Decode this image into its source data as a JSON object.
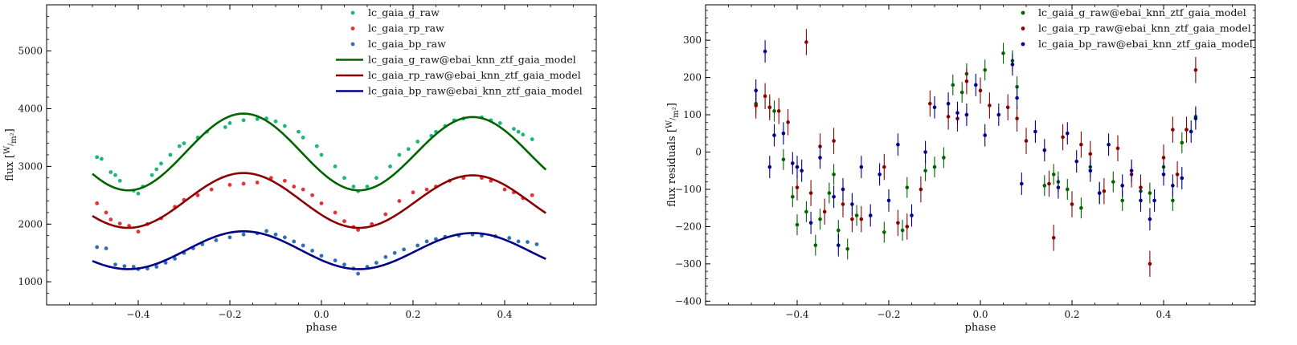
{
  "chart_data": [
    {
      "type": "scatter",
      "xlabel": "phase",
      "ylabel": "flux [W/m²]",
      "ylabel_parts": {
        "main": "flux [",
        "num": "W",
        "den": "m²",
        "close": "]"
      },
      "xlim": [
        -0.6,
        0.6
      ],
      "ylim": [
        600,
        5800
      ],
      "xticks": [
        -0.4,
        -0.2,
        0.0,
        0.2,
        0.4
      ],
      "xtick_labels": [
        "−0.4",
        "−0.2",
        "0.0",
        "0.2",
        "0.4"
      ],
      "yticks": [
        1000,
        2000,
        3000,
        4000,
        5000
      ],
      "ytick_labels": [
        "1000",
        "2000",
        "3000",
        "4000",
        "5000"
      ],
      "legend": {
        "position": "top-right",
        "entries": [
          {
            "label": "lc_gaia_g_raw",
            "kind": "point",
            "color": "#1db67a"
          },
          {
            "label": "lc_gaia_rp_raw",
            "kind": "point",
            "color": "#e8303a"
          },
          {
            "label": "lc_gaia_bp_raw",
            "kind": "point",
            "color": "#2e70b0"
          },
          {
            "label": "lc_gaia_g_raw@ebai_knn_ztf_gaia_model",
            "kind": "line",
            "color": "#006400"
          },
          {
            "label": "lc_gaia_rp_raw@ebai_knn_ztf_gaia_model",
            "kind": "line",
            "color": "#8b0000"
          },
          {
            "label": "lc_gaia_bp_raw@ebai_knn_ztf_gaia_model",
            "kind": "line",
            "color": "#00008b"
          }
        ]
      },
      "series": [
        {
          "name": "lc_gaia_g_raw",
          "kind": "point",
          "color": "#1db67a",
          "x": [
            -0.49,
            -0.48,
            -0.46,
            -0.45,
            -0.44,
            -0.41,
            -0.4,
            -0.39,
            -0.37,
            -0.36,
            -0.35,
            -0.33,
            -0.31,
            -0.3,
            -0.27,
            -0.25,
            -0.21,
            -0.2,
            -0.17,
            -0.14,
            -0.12,
            -0.1,
            -0.08,
            -0.05,
            -0.04,
            -0.01,
            0.0,
            0.03,
            0.05,
            0.07,
            0.08,
            0.1,
            0.12,
            0.15,
            0.17,
            0.19,
            0.21,
            0.24,
            0.25,
            0.27,
            0.29,
            0.31,
            0.35,
            0.37,
            0.39,
            0.42,
            0.43,
            0.44,
            0.46
          ],
          "y": [
            3160,
            3130,
            2900,
            2850,
            2750,
            2580,
            2530,
            2650,
            2850,
            2950,
            3050,
            3200,
            3350,
            3400,
            3500,
            3600,
            3680,
            3750,
            3800,
            3820,
            3830,
            3780,
            3700,
            3600,
            3500,
            3350,
            3200,
            3000,
            2800,
            2650,
            2570,
            2650,
            2800,
            3000,
            3200,
            3300,
            3430,
            3530,
            3600,
            3700,
            3800,
            3830,
            3850,
            3800,
            3750,
            3650,
            3600,
            3550,
            3470
          ]
        },
        {
          "name": "lc_gaia_rp_raw",
          "kind": "point",
          "color": "#e8303a",
          "x": [
            -0.49,
            -0.47,
            -0.46,
            -0.44,
            -0.42,
            -0.4,
            -0.38,
            -0.35,
            -0.32,
            -0.3,
            -0.27,
            -0.24,
            -0.2,
            -0.17,
            -0.14,
            -0.11,
            -0.08,
            -0.06,
            -0.04,
            -0.02,
            0.0,
            0.03,
            0.05,
            0.07,
            0.08,
            0.11,
            0.14,
            0.17,
            0.2,
            0.23,
            0.25,
            0.28,
            0.31,
            0.35,
            0.37,
            0.4,
            0.42,
            0.44,
            0.46
          ],
          "y": [
            2360,
            2200,
            2080,
            2010,
            1970,
            1870,
            2000,
            2100,
            2300,
            2420,
            2500,
            2600,
            2680,
            2700,
            2720,
            2800,
            2750,
            2650,
            2600,
            2500,
            2360,
            2200,
            2050,
            1950,
            1900,
            2000,
            2170,
            2400,
            2550,
            2600,
            2650,
            2750,
            2800,
            2800,
            2750,
            2600,
            2550,
            2450,
            2500
          ]
        },
        {
          "name": "lc_gaia_bp_raw",
          "kind": "point",
          "color": "#2e70b0",
          "x": [
            -0.49,
            -0.47,
            -0.45,
            -0.43,
            -0.41,
            -0.4,
            -0.38,
            -0.36,
            -0.34,
            -0.32,
            -0.3,
            -0.28,
            -0.26,
            -0.23,
            -0.2,
            -0.17,
            -0.14,
            -0.12,
            -0.1,
            -0.08,
            -0.06,
            -0.04,
            -0.02,
            0.0,
            0.03,
            0.05,
            0.07,
            0.08,
            0.1,
            0.12,
            0.14,
            0.16,
            0.18,
            0.21,
            0.23,
            0.25,
            0.27,
            0.3,
            0.33,
            0.35,
            0.38,
            0.41,
            0.43,
            0.45,
            0.47
          ],
          "y": [
            1600,
            1580,
            1300,
            1270,
            1260,
            1220,
            1230,
            1260,
            1330,
            1400,
            1500,
            1580,
            1650,
            1720,
            1770,
            1820,
            1840,
            1880,
            1820,
            1770,
            1700,
            1630,
            1540,
            1450,
            1370,
            1300,
            1230,
            1140,
            1260,
            1330,
            1430,
            1500,
            1560,
            1630,
            1700,
            1740,
            1780,
            1800,
            1820,
            1800,
            1790,
            1760,
            1700,
            1690,
            1650
          ]
        },
        {
          "name": "lc_gaia_g_raw@ebai_knn_ztf_gaia_model",
          "kind": "line",
          "color": "#006400",
          "mean": 3235,
          "amp1": 650,
          "amp2": 30,
          "phase_max1": -0.17,
          "phase_max2": 0.33,
          "x_range": [
            -0.5,
            0.49
          ]
        },
        {
          "name": "lc_gaia_rp_raw@ebai_knn_ztf_gaia_model",
          "kind": "line",
          "color": "#8b0000",
          "mean": 2400,
          "amp1": 465,
          "amp2": 20,
          "phase_max1": -0.17,
          "phase_max2": 0.33,
          "x_range": [
            -0.5,
            0.49
          ]
        },
        {
          "name": "lc_gaia_bp_raw@ebai_knn_ztf_gaia_model",
          "kind": "line",
          "color": "#00008b",
          "mean": 1540,
          "amp1": 320,
          "amp2": 15,
          "phase_max1": -0.17,
          "phase_max2": 0.33,
          "x_range": [
            -0.5,
            0.49
          ]
        }
      ]
    },
    {
      "type": "scatter",
      "xlabel": "phase",
      "ylabel": "flux residuals [W/m²]",
      "ylabel_parts": {
        "main": "flux residuals [",
        "num": "W",
        "den": "m²",
        "close": "]"
      },
      "xlim": [
        -0.6,
        0.6
      ],
      "ylim": [
        -410,
        395
      ],
      "xticks": [
        -0.4,
        -0.2,
        0.0,
        0.2,
        0.4
      ],
      "xtick_labels": [
        "−0.4",
        "−0.2",
        "0.0",
        "0.2",
        "0.4"
      ],
      "yticks": [
        -400,
        -300,
        -200,
        -100,
        0,
        100,
        200,
        300
      ],
      "ytick_labels": [
        "−400",
        "−300",
        "−200",
        "−100",
        "0",
        "100",
        "200",
        "300"
      ],
      "legend": {
        "position": "top-right",
        "entries": [
          {
            "label": "lc_gaia_g_raw@ebai_knn_ztf_gaia_model",
            "kind": "point",
            "color": "#006400"
          },
          {
            "label": "lc_gaia_rp_raw@ebai_knn_ztf_gaia_model",
            "kind": "point",
            "color": "#8b0000"
          },
          {
            "label": "lc_gaia_bp_raw@ebai_knn_ztf_gaia_model",
            "kind": "point",
            "color": "#00008b"
          }
        ]
      },
      "series": [
        {
          "name": "lc_gaia_g_raw@ebai_knn_ztf_gaia_model",
          "kind": "errorbar",
          "color": "#006400",
          "err": 28,
          "x": [
            -0.49,
            -0.46,
            -0.45,
            -0.43,
            -0.41,
            -0.4,
            -0.38,
            -0.36,
            -0.35,
            -0.33,
            -0.32,
            -0.31,
            -0.29,
            -0.27,
            -0.21,
            -0.17,
            -0.16,
            -0.12,
            -0.1,
            -0.08,
            -0.06,
            -0.04,
            -0.03,
            0.01,
            0.05,
            0.07,
            0.08,
            0.14,
            0.16,
            0.17,
            0.19,
            0.22,
            0.24,
            0.26,
            0.29,
            0.31,
            0.35,
            0.37,
            0.4,
            0.42,
            0.44,
            0.45,
            0.47
          ],
          "y": [
            130,
            120,
            110,
            -20,
            -120,
            -195,
            -160,
            -250,
            -180,
            -110,
            -60,
            -210,
            -260,
            -170,
            -215,
            -210,
            -95,
            -50,
            -40,
            -15,
            180,
            160,
            210,
            220,
            265,
            245,
            175,
            -90,
            -60,
            -80,
            -100,
            -150,
            -40,
            -110,
            -80,
            -130,
            -105,
            -110,
            -40,
            -130,
            25,
            60,
            95
          ]
        },
        {
          "name": "lc_gaia_rp_raw@ebai_knn_ztf_gaia_model",
          "kind": "errorbar",
          "color": "#8b0000",
          "err": 35,
          "x": [
            -0.49,
            -0.47,
            -0.46,
            -0.44,
            -0.42,
            -0.4,
            -0.38,
            -0.37,
            -0.35,
            -0.34,
            -0.32,
            -0.3,
            -0.28,
            -0.26,
            -0.21,
            -0.18,
            -0.16,
            -0.13,
            -0.11,
            -0.07,
            -0.05,
            -0.03,
            0.0,
            0.02,
            0.06,
            0.08,
            0.1,
            0.15,
            0.16,
            0.18,
            0.2,
            0.22,
            0.24,
            0.27,
            0.3,
            0.33,
            0.35,
            0.37,
            0.4,
            0.42,
            0.43,
            0.45,
            0.47
          ],
          "y": [
            125,
            150,
            120,
            110,
            80,
            -95,
            295,
            -110,
            15,
            -160,
            30,
            -140,
            -180,
            -180,
            -40,
            -190,
            -200,
            -100,
            130,
            95,
            90,
            190,
            165,
            125,
            120,
            90,
            30,
            -85,
            -230,
            40,
            -140,
            20,
            -5,
            -105,
            10,
            -60,
            -95,
            -300,
            -15,
            60,
            -60,
            60,
            220
          ]
        },
        {
          "name": "lc_gaia_bp_raw@ebai_knn_ztf_gaia_model",
          "kind": "errorbar",
          "color": "#00008b",
          "err": 30,
          "x": [
            -0.49,
            -0.47,
            -0.46,
            -0.45,
            -0.43,
            -0.41,
            -0.4,
            -0.39,
            -0.37,
            -0.35,
            -0.32,
            -0.31,
            -0.3,
            -0.28,
            -0.26,
            -0.24,
            -0.22,
            -0.2,
            -0.18,
            -0.15,
            -0.12,
            -0.1,
            -0.07,
            -0.05,
            -0.03,
            -0.01,
            0.01,
            0.04,
            0.07,
            0.08,
            0.09,
            0.12,
            0.14,
            0.17,
            0.19,
            0.21,
            0.24,
            0.26,
            0.28,
            0.31,
            0.33,
            0.35,
            0.37,
            0.38,
            0.4,
            0.42,
            0.44,
            0.46,
            0.47
          ],
          "y": [
            165,
            270,
            -40,
            45,
            50,
            -30,
            -40,
            -50,
            -190,
            -15,
            -120,
            -250,
            -100,
            -140,
            -40,
            -170,
            -60,
            -130,
            20,
            -170,
            0,
            120,
            130,
            105,
            100,
            180,
            45,
            100,
            235,
            145,
            -85,
            55,
            5,
            -95,
            50,
            -25,
            -50,
            -110,
            20,
            -90,
            -50,
            -130,
            -180,
            -130,
            -60,
            -90,
            -70,
            55,
            90
          ]
        }
      ]
    }
  ]
}
